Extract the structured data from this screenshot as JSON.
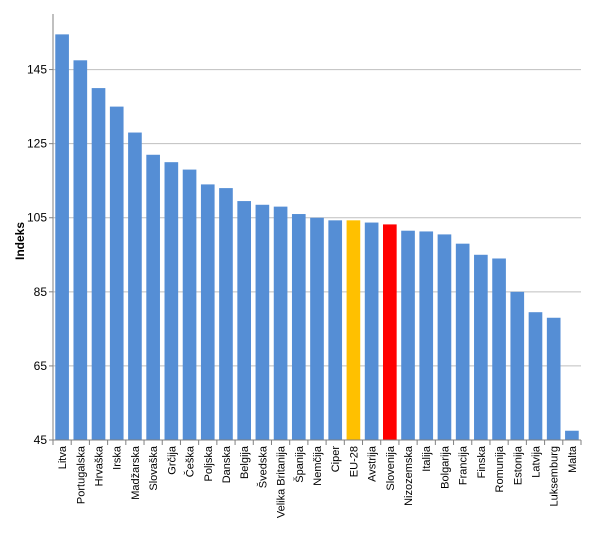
{
  "chart_data": {
    "type": "bar",
    "ylabel": "Indeks",
    "ylim": [
      45,
      160
    ],
    "yticks": [
      45,
      65,
      85,
      105,
      125,
      145
    ],
    "grid": true,
    "categories": [
      "Litva",
      "Portugalska",
      "Hrvaška",
      "Irska",
      "Madžarska",
      "Slovaška",
      "Grčija",
      "Češka",
      "Poljska",
      "Danska",
      "Belgija",
      "Švedska",
      "Velika Britanija",
      "Španija",
      "Nemčija",
      "Ciper",
      "EU-28",
      "Avstrija",
      "Slovenija",
      "Nizozemska",
      "Italija",
      "Bolgarija",
      "Francija",
      "Finska",
      "Romunija",
      "Estonija",
      "Latvija",
      "Luksemburg",
      "Malta"
    ],
    "values": [
      154.5,
      147.5,
      140,
      135,
      128,
      122,
      120,
      118,
      114,
      113,
      109.5,
      108.5,
      108,
      106,
      105,
      104.3,
      104.3,
      103.7,
      103.2,
      101.5,
      101.3,
      100.5,
      98,
      95,
      94,
      85,
      79.5,
      78,
      47.5
    ],
    "colors": {
      "default": "#558ed5",
      "highlight_eu": "#ffc000",
      "highlight_slovenia": "#ff0000",
      "grid": "#bfbfbf",
      "axis": "#808080"
    },
    "highlights": {
      "EU-28": "highlight_eu",
      "Slovenija": "highlight_slovenia"
    }
  }
}
